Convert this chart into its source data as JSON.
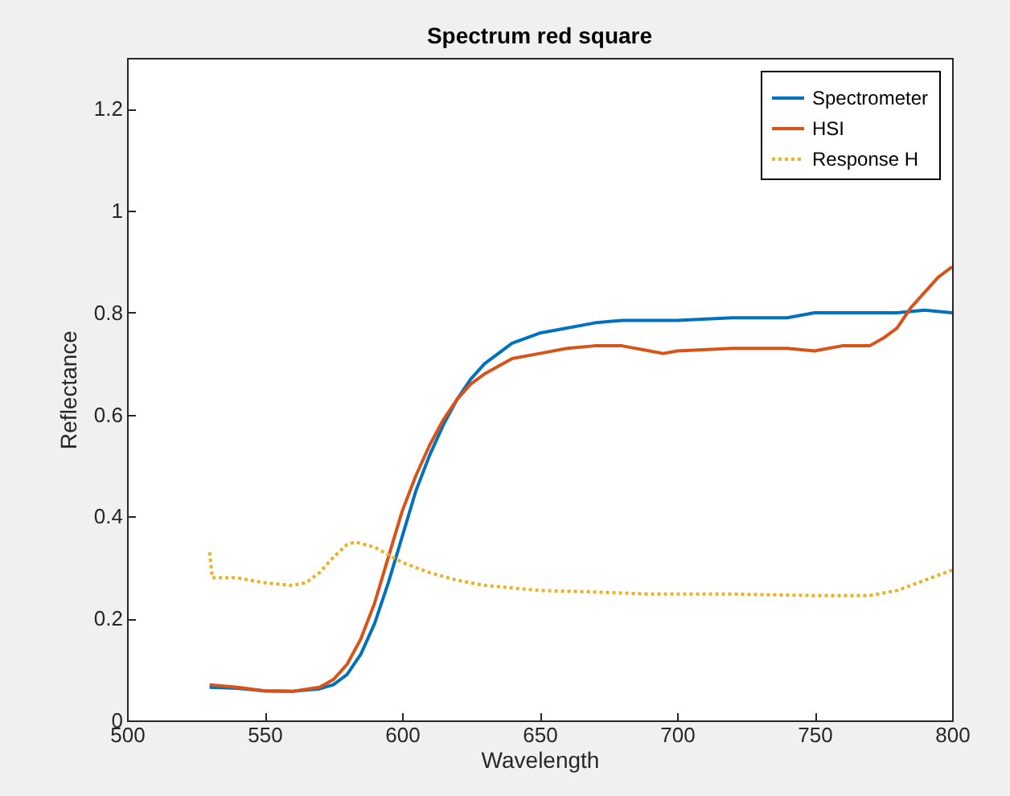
{
  "chart_data": {
    "type": "line",
    "title": "Spectrum red square",
    "xlabel": "Wavelength",
    "ylabel": "Reflectance",
    "xlim": [
      500,
      800
    ],
    "xticks": [
      500,
      550,
      600,
      650,
      700,
      750,
      800
    ],
    "ylim": [
      0,
      1.3
    ],
    "yticks": [
      0,
      0.2,
      0.4,
      0.6,
      0.8,
      1,
      1.2
    ],
    "grid": false,
    "legend": "top right",
    "marker": "none",
    "series": [
      {
        "name": "Spectrometer",
        "color": "#0072bd",
        "line_style": "solid",
        "x": [
          530,
          540,
          550,
          560,
          570,
          575,
          580,
          585,
          590,
          595,
          600,
          605,
          610,
          615,
          620,
          625,
          630,
          640,
          650,
          660,
          670,
          680,
          700,
          720,
          740,
          750,
          760,
          780,
          790,
          800
        ],
        "values": [
          0.065,
          0.063,
          0.058,
          0.057,
          0.062,
          0.07,
          0.09,
          0.13,
          0.19,
          0.27,
          0.36,
          0.45,
          0.52,
          0.58,
          0.63,
          0.67,
          0.7,
          0.74,
          0.76,
          0.77,
          0.78,
          0.785,
          0.785,
          0.79,
          0.79,
          0.8,
          0.8,
          0.8,
          0.805,
          0.8
        ]
      },
      {
        "name": "HSI",
        "color": "#d95319",
        "line_style": "solid",
        "x": [
          530,
          540,
          550,
          560,
          570,
          575,
          580,
          585,
          590,
          595,
          600,
          605,
          610,
          615,
          620,
          625,
          630,
          640,
          650,
          660,
          670,
          680,
          690,
          695,
          700,
          720,
          740,
          750,
          760,
          770,
          775,
          780,
          785,
          790,
          795,
          800
        ],
        "values": [
          0.07,
          0.065,
          0.058,
          0.057,
          0.065,
          0.08,
          0.11,
          0.16,
          0.23,
          0.32,
          0.41,
          0.48,
          0.54,
          0.59,
          0.63,
          0.66,
          0.68,
          0.71,
          0.72,
          0.73,
          0.735,
          0.735,
          0.725,
          0.72,
          0.725,
          0.73,
          0.73,
          0.725,
          0.735,
          0.735,
          0.75,
          0.77,
          0.81,
          0.84,
          0.87,
          0.89
        ]
      },
      {
        "name": "Response H",
        "color": "#edb120",
        "line_style": "dotted",
        "x": [
          530,
          531,
          535,
          540,
          545,
          550,
          560,
          565,
          570,
          575,
          580,
          583,
          590,
          600,
          610,
          620,
          630,
          650,
          670,
          690,
          700,
          720,
          750,
          770,
          780,
          790,
          800
        ],
        "values": [
          0.33,
          0.28,
          0.28,
          0.28,
          0.275,
          0.27,
          0.265,
          0.27,
          0.29,
          0.32,
          0.345,
          0.35,
          0.34,
          0.31,
          0.29,
          0.275,
          0.265,
          0.255,
          0.252,
          0.248,
          0.248,
          0.248,
          0.245,
          0.245,
          0.255,
          0.275,
          0.295
        ]
      }
    ]
  }
}
